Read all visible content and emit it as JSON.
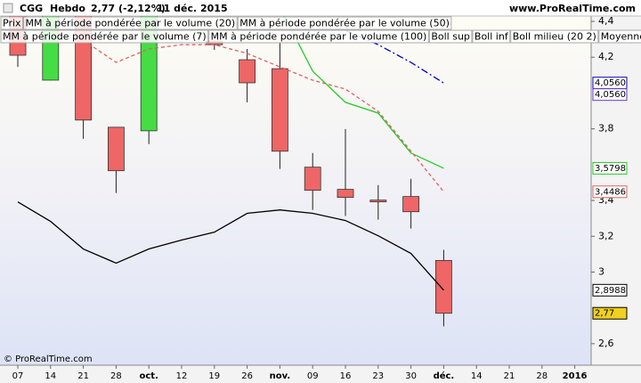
{
  "chart_data": {
    "type": "candlestick",
    "title": "CGG",
    "timeframe": "Hebdo",
    "last_quote": "2,77 (-2,12%)",
    "date": "11 déc. 2015",
    "source": "www.ProRealTime.com",
    "copyright": "© ProRealTime.com",
    "categories": [
      "07",
      "14",
      "21",
      "28",
      "oct.",
      "12",
      "19",
      "26",
      "nov.",
      "09",
      "16",
      "23",
      "30",
      "déc.",
      "14",
      "21",
      "28",
      "2016"
    ],
    "ylim": [
      2.48,
      4.43
    ],
    "yticks": [
      {
        "value": 4.4,
        "label": "4,4"
      },
      {
        "value": 4.2,
        "label": "4,2"
      },
      {
        "value": 3.8,
        "label": "3,8"
      },
      {
        "value": 3.4,
        "label": "3,4"
      },
      {
        "value": 3.2,
        "label": "3,2"
      },
      3,
      {
        "value": 2.6,
        "label": "2,6"
      }
    ],
    "up_color": "#44dd44",
    "down_color": "#ee6666",
    "series": [
      {
        "name": "Prix",
        "color": "#000000",
        "open": [
          4.45,
          4.072,
          4.5,
          3.809,
          3.789,
          null,
          4.29,
          4.186,
          4.136,
          3.586,
          3.462,
          3.402,
          3.422,
          3.065,
          null,
          null,
          null,
          null
        ],
        "high": [
          4.5,
          4.55,
          4.55,
          3.81,
          4.55,
          null,
          4.31,
          4.246,
          4.28,
          3.665,
          3.799,
          3.486,
          3.521,
          3.124,
          null,
          null,
          null,
          null
        ],
        "low": [
          4.146,
          4.07,
          3.744,
          3.442,
          3.715,
          null,
          4.241,
          3.948,
          3.576,
          3.347,
          3.313,
          3.293,
          3.243,
          2.697,
          null,
          null,
          null,
          null
        ],
        "close": [
          4.211,
          4.5,
          3.849,
          3.566,
          4.5,
          null,
          4.27,
          4.057,
          3.675,
          3.457,
          3.417,
          3.392,
          3.337,
          2.77,
          null,
          null,
          null,
          null
        ],
        "last": {
          "value": 2.77,
          "label": "2,77"
        }
      },
      {
        "name": "MM à période pondérée par le volume (20)",
        "color": "#0000cc",
        "style": "dash-dot",
        "values": [
          null,
          null,
          null,
          null,
          null,
          null,
          null,
          null,
          null,
          null,
          4.35,
          4.27,
          4.171,
          4.056,
          null,
          null,
          null,
          null
        ],
        "last": {
          "value": 4.056,
          "label": "4,0560"
        }
      },
      {
        "name": "MM à période pondérée par le volume (50)",
        "color": "#222222"
      },
      {
        "name": "MM à période pondérée par le volume (7)",
        "color": "#22cc22",
        "style": "solid",
        "values": [
          null,
          null,
          null,
          null,
          null,
          null,
          null,
          null,
          4.48,
          4.122,
          3.948,
          3.888,
          3.665,
          3.5798,
          null,
          null,
          null,
          null
        ],
        "last": {
          "value": 3.5798,
          "label": "3,5798"
        }
      },
      {
        "name": "MM à période pondérée par le volume (100)",
        "color": "#e06060",
        "style": "dashed",
        "values": [
          null,
          null,
          4.295,
          4.171,
          4.246,
          4.27,
          4.27,
          4.221,
          4.146,
          4.072,
          4.022,
          3.898,
          3.675,
          3.4486,
          null,
          null,
          null,
          null
        ],
        "last": {
          "value": 3.4486,
          "label": "3,4486"
        }
      },
      {
        "name": "Boll sup",
        "color": "#000000"
      },
      {
        "name": "Boll inf",
        "color": "#000000",
        "style": "solid",
        "values": [
          3.392,
          3.283,
          3.129,
          3.05,
          3.129,
          3.179,
          3.223,
          3.328,
          3.347,
          3.328,
          3.288,
          3.203,
          3.104,
          2.8988,
          null,
          null,
          null,
          null
        ],
        "last": {
          "value": 2.8988,
          "label": "2,8988"
        }
      },
      {
        "name": "Boll milieu (20 2)",
        "color": "#6633cc",
        "last": {
          "value": 4.056,
          "label": "4,0560"
        }
      },
      {
        "name": "Moyenne mobile",
        "color": "#0000cc"
      }
    ]
  }
}
